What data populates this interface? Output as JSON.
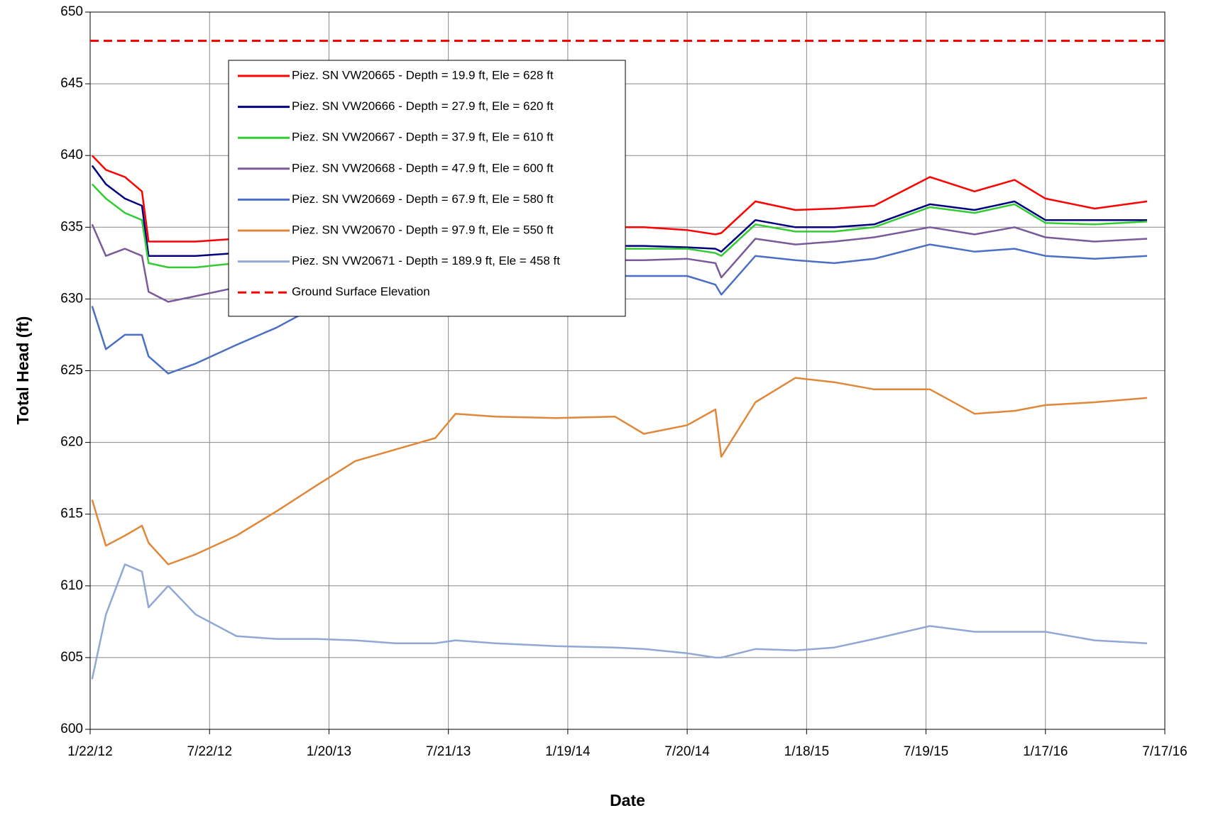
{
  "chart_data": {
    "type": "line",
    "xlabel": "Date",
    "ylabel": "Total Head (ft)",
    "x": [
      "2012-01-25",
      "2012-02-15",
      "2012-03-15",
      "2012-04-10",
      "2012-04-20",
      "2012-05-20",
      "2012-07-01",
      "2012-09-01",
      "2012-11-01",
      "2013-01-01",
      "2013-03-01",
      "2013-05-01",
      "2013-07-01",
      "2013-08-01",
      "2013-10-01",
      "2014-01-01",
      "2014-04-01",
      "2014-05-15",
      "2014-07-20",
      "2014-09-01",
      "2014-09-10",
      "2014-11-01",
      "2015-01-01",
      "2015-03-01",
      "2015-05-01",
      "2015-07-25",
      "2015-10-01",
      "2015-12-01",
      "2016-01-17",
      "2016-04-01",
      "2016-06-20"
    ],
    "series": [
      {
        "name": "Piez. SN VW20665 - Depth = 19.9 ft, Ele = 628 ft",
        "color": "#ff0000",
        "values": [
          640,
          639,
          638.5,
          637.5,
          634,
          634,
          634,
          634.2,
          634.4,
          634.5,
          634.6,
          634.7,
          634.8,
          634.9,
          634.9,
          635,
          635,
          635,
          634.8,
          634.5,
          634.6,
          636.8,
          636.2,
          636.3,
          636.5,
          638.5,
          637.5,
          638.3,
          637,
          636.3,
          636.8
        ]
      },
      {
        "name": "Piez. SN VW20666 - Depth = 27.9 ft, Ele = 620 ft",
        "color": "#000080",
        "values": [
          639.3,
          638,
          637,
          636.5,
          633,
          633,
          633,
          633.2,
          633.4,
          633.5,
          633.6,
          633.7,
          633.7,
          633.7,
          633.7,
          633.7,
          633.7,
          633.7,
          633.6,
          633.5,
          633.3,
          635.5,
          635,
          635,
          635.2,
          636.6,
          636.2,
          636.8,
          635.5,
          635.5,
          635.5
        ]
      },
      {
        "name": "Piez. SN VW20667 - Depth = 37.9 ft, Ele = 610 ft",
        "color": "#33cc33",
        "values": [
          638,
          637,
          636,
          635.5,
          632.5,
          632.2,
          632.2,
          632.5,
          632.8,
          633,
          633.2,
          633.3,
          633.4,
          633.4,
          633.4,
          633.5,
          633.5,
          633.5,
          633.5,
          633.2,
          633,
          635.2,
          634.7,
          634.7,
          635,
          636.4,
          636,
          636.6,
          635.3,
          635.2,
          635.4
        ]
      },
      {
        "name": "Piez. SN VW20668 - Depth = 47.9 ft, Ele = 600 ft",
        "color": "#7a5a9a",
        "values": [
          635.2,
          633,
          633.5,
          633,
          630.5,
          629.8,
          630.2,
          630.8,
          631.2,
          631.5,
          632,
          632.3,
          632.5,
          632.6,
          632.7,
          632.7,
          632.7,
          632.7,
          632.8,
          632.5,
          631.5,
          634.2,
          633.8,
          634,
          634.3,
          635,
          634.5,
          635,
          634.3,
          634,
          634.2
        ]
      },
      {
        "name": "Piez. SN VW20669 - Depth = 67.9 ft, Ele = 580 ft",
        "color": "#4a6fc4",
        "values": [
          629.5,
          626.5,
          627.5,
          627.5,
          626,
          624.8,
          625.5,
          626.8,
          628,
          629.5,
          630.5,
          631,
          631.2,
          631.3,
          631.4,
          631.5,
          631.6,
          631.6,
          631.6,
          631,
          630.3,
          633,
          632.7,
          632.5,
          632.8,
          633.8,
          633.3,
          633.5,
          633,
          632.8,
          633
        ]
      },
      {
        "name": "Piez. SN VW20670 - Depth = 97.9 ft, Ele = 550 ft",
        "color": "#e0883a",
        "values": [
          616,
          612.8,
          613.5,
          614.2,
          613,
          611.5,
          612.2,
          613.5,
          615.2,
          617,
          618.7,
          619.5,
          620.3,
          622,
          621.8,
          621.7,
          621.8,
          620.6,
          621.2,
          622.3,
          619,
          622.8,
          624.5,
          624.2,
          623.7,
          623.7,
          622,
          622.2,
          622.6,
          622.8,
          623.1
        ]
      },
      {
        "name": "Piez. SN VW20671 - Depth = 189.9 ft, Ele = 458 ft",
        "color": "#8fa8d4",
        "values": [
          603.5,
          608,
          611.5,
          611,
          608.5,
          610,
          608,
          606.5,
          606.3,
          606.3,
          606.2,
          606,
          606,
          606.2,
          606,
          605.8,
          605.7,
          605.6,
          605.3,
          605,
          605,
          605.6,
          605.5,
          605.7,
          606.3,
          607.2,
          606.8,
          606.8,
          606.8,
          606.2,
          606
        ]
      }
    ],
    "reference_line": {
      "name": "Ground Surface Elevation",
      "value": 648,
      "color": "#ff0000",
      "dashed": true
    },
    "xlim": [
      "2012-01-22",
      "2016-07-17"
    ],
    "xticks": [
      {
        "value": "2012-01-22",
        "label": "1/22/12"
      },
      {
        "value": "2012-07-22",
        "label": "7/22/12"
      },
      {
        "value": "2013-01-20",
        "label": "1/20/13"
      },
      {
        "value": "2013-07-21",
        "label": "7/21/13"
      },
      {
        "value": "2014-01-19",
        "label": "1/19/14"
      },
      {
        "value": "2014-07-20",
        "label": "7/20/14"
      },
      {
        "value": "2015-01-18",
        "label": "1/18/15"
      },
      {
        "value": "2015-07-19",
        "label": "7/19/15"
      },
      {
        "value": "2016-01-17",
        "label": "1/17/16"
      },
      {
        "value": "2016-07-17",
        "label": "7/17/16"
      }
    ],
    "ylim": [
      600,
      650
    ],
    "yticks": [
      600,
      605,
      610,
      615,
      620,
      625,
      630,
      635,
      640,
      645,
      650
    ],
    "grid": true,
    "legend": "upper left"
  }
}
